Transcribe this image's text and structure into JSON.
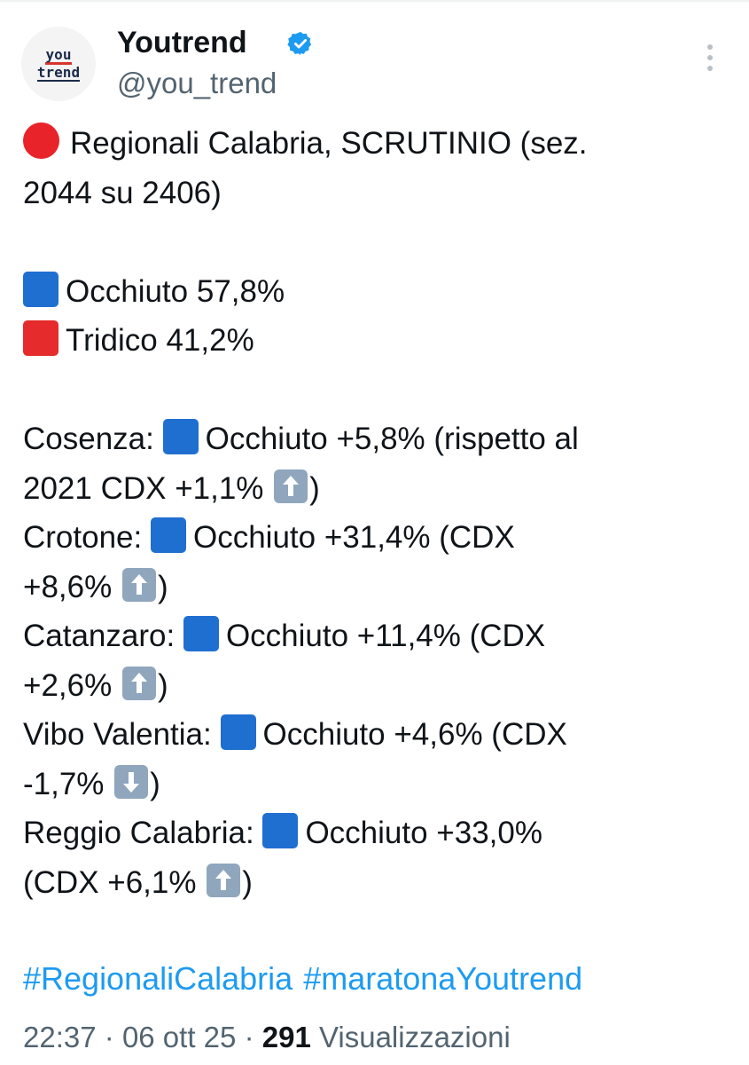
{
  "author": {
    "avatar_text_top": "you",
    "avatar_text_bottom": "trend",
    "display_name": "Youtrend",
    "handle": "@you_trend",
    "verified_icon": "verified-badge-icon"
  },
  "tweet": {
    "line1": "Regionali Calabria, SCRUTINIO (sez.",
    "line2": "2044 su 2406)",
    "candidates": [
      {
        "name_pct": "Occhiuto 57,8%",
        "color": "#1f6fd1"
      },
      {
        "name_pct": "Tridico 41,2%",
        "color": "#e52b2b"
      }
    ],
    "provinces": [
      {
        "label": "Cosenza:",
        "result": "Occhiuto +5,8% (rispetto al",
        "cont": "2021 CDX +1,1%",
        "close": ")",
        "trend": "up"
      },
      {
        "label": "Crotone:",
        "result": "Occhiuto +31,4% (CDX",
        "cont": "+8,6%",
        "close": ")",
        "trend": "up"
      },
      {
        "label": "Catanzaro:",
        "result": "Occhiuto +11,4% (CDX",
        "cont": "+2,6%",
        "close": ")",
        "trend": "up"
      },
      {
        "label": "Vibo Valentia:",
        "result": "Occhiuto +4,6% (CDX",
        "cont": "-1,7%",
        "close": ")",
        "trend": "down"
      },
      {
        "label": "Reggio Calabria:",
        "result": "Occhiuto +33,0%",
        "cont": "(CDX +6,1%",
        "close": ")",
        "trend": "up"
      }
    ],
    "hashtags": [
      "#RegionaliCalabria",
      "#maratonaYoutrend"
    ]
  },
  "meta": {
    "time": "22:37",
    "sep1": "·",
    "date": "06 ott 25",
    "sep2": "·",
    "views_count": "291",
    "views_label": "Visualizzazioni"
  }
}
